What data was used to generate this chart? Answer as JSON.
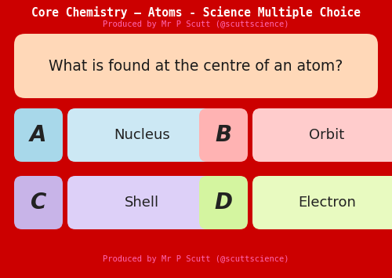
{
  "title": "Core Chemistry – Atoms - Science Multiple Choice",
  "subtitle": "Produced by Mr P Scutt (@scuttscience)",
  "question": "What is found at the centre of an atom?",
  "options": [
    {
      "letter": "A",
      "text": "Nucleus"
    },
    {
      "letter": "B",
      "text": "Orbit"
    },
    {
      "letter": "C",
      "text": "Shell"
    },
    {
      "letter": "D",
      "text": "Electron"
    }
  ],
  "bg_color": "#cc0000",
  "title_color": "#ffffff",
  "subtitle_color": "#ff69b4",
  "question_box_color": "#ffd8b8",
  "question_text_color": "#1a1a1a",
  "footer_color": "#ff69b4",
  "letter_box_colors": [
    "#a8d8ea",
    "#ffb3b3",
    "#c8b4e8",
    "#d4f5a0"
  ],
  "text_box_colors": [
    "#cce8f4",
    "#ffcccc",
    "#ddd0f8",
    "#e8fac0"
  ],
  "title_fontsize": 10.5,
  "subtitle_fontsize": 7.5,
  "question_fontsize": 13.5,
  "option_letter_fontsize": 20,
  "option_text_fontsize": 13,
  "footer_fontsize": 7.5
}
